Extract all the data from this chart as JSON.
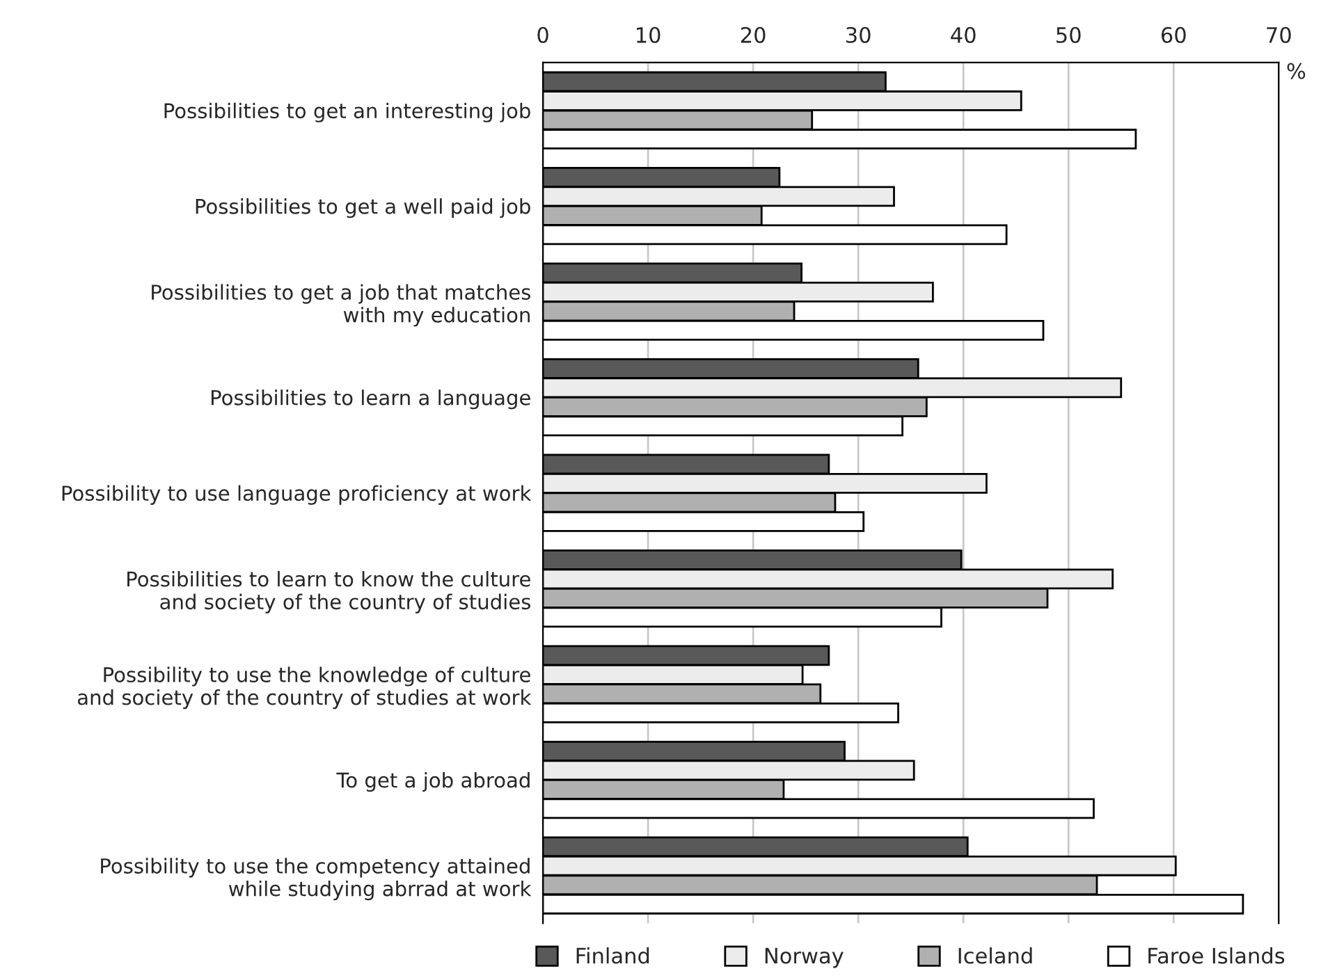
{
  "chart_data": {
    "type": "bar",
    "orientation": "horizontal",
    "xlabel": "%",
    "categories": [
      "Possibilities to get an interesting job",
      "Possibilities to get a well paid job",
      "Possibilities to get a job that matches\nwith my education",
      "Possibilities to learn a language",
      "Possibility to use language proficiency at work",
      "Possibilities to learn to know the culture\nand society of the country of studies",
      "Possibility to use the knowledge of culture\nand society of the country of studies at work",
      "To get a job abroad",
      "Possibility to use the competency attained\nwhile studying abrrad at work"
    ],
    "series": [
      {
        "name": "Finland",
        "color": "#595959",
        "values": [
          32.6,
          22.5,
          24.6,
          35.7,
          27.2,
          39.8,
          27.2,
          28.7,
          40.4
        ]
      },
      {
        "name": "Norway",
        "color": "#ebeceb",
        "values": [
          45.5,
          33.4,
          37.1,
          55.0,
          42.2,
          54.2,
          24.7,
          35.3,
          60.2
        ]
      },
      {
        "name": "Iceland",
        "color": "#b0b0b0",
        "values": [
          25.6,
          20.8,
          23.9,
          36.5,
          27.8,
          48.0,
          26.4,
          22.9,
          52.7
        ]
      },
      {
        "name": "Faroe Islands",
        "color": "#ffffff",
        "values": [
          56.4,
          44.1,
          47.6,
          34.2,
          30.5,
          37.9,
          33.8,
          52.4,
          66.6
        ]
      }
    ],
    "xlim": [
      0,
      70
    ],
    "xticks": [
      0,
      10,
      20,
      30,
      40,
      50,
      60,
      70
    ],
    "grid": "x",
    "legend": "bottom"
  }
}
